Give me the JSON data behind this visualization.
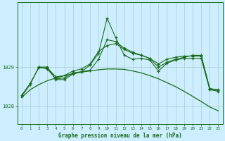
{
  "background_color": "#cceeff",
  "grid_color": "#aacccc",
  "line_color": "#1a6b1a",
  "title": "Graphe pression niveau de la mer (hPa)",
  "xlim": [
    -0.5,
    23.5
  ],
  "ylim": [
    1027.55,
    1030.65
  ],
  "yticks": [
    1028,
    1029
  ],
  "xticks": [
    0,
    1,
    2,
    3,
    4,
    5,
    6,
    7,
    8,
    9,
    10,
    11,
    12,
    13,
    14,
    15,
    16,
    17,
    18,
    19,
    20,
    21,
    22,
    23
  ],
  "series_main": {
    "x": [
      0,
      1,
      2,
      3,
      4,
      5,
      6,
      7,
      8,
      9,
      10,
      11,
      12,
      13,
      14,
      15,
      16,
      17,
      18,
      19,
      20,
      21,
      22,
      23
    ],
    "y": [
      1028.25,
      1028.55,
      1029.0,
      1028.95,
      1028.7,
      1028.72,
      1028.85,
      1028.88,
      1029.05,
      1029.35,
      1030.25,
      1029.75,
      1029.3,
      1029.2,
      1029.22,
      1029.18,
      1028.9,
      1029.1,
      1029.18,
      1029.22,
      1029.22,
      1029.22,
      1028.42,
      1028.38
    ]
  },
  "series2": {
    "x": [
      0,
      1,
      2,
      3,
      4,
      5,
      6,
      7,
      8,
      9,
      10,
      11,
      12,
      13,
      14,
      15,
      16,
      17,
      18,
      19,
      20,
      21,
      22,
      23
    ],
    "y": [
      1028.28,
      1028.58,
      1028.98,
      1028.98,
      1028.75,
      1028.78,
      1028.9,
      1028.95,
      1029.08,
      1029.4,
      1029.55,
      1029.6,
      1029.45,
      1029.35,
      1029.3,
      1029.22,
      1029.08,
      1029.2,
      1029.25,
      1029.28,
      1029.28,
      1029.28,
      1028.45,
      1028.4
    ]
  },
  "series3": {
    "x": [
      2,
      3,
      4,
      5,
      6,
      7,
      8,
      9,
      10,
      11,
      12,
      13,
      14,
      15,
      16,
      17,
      18,
      19,
      20,
      21,
      22,
      23
    ],
    "y": [
      1029.0,
      1029.0,
      1028.68,
      1028.68,
      1028.82,
      1028.88,
      1028.92,
      1029.2,
      1029.7,
      1029.65,
      1029.48,
      1029.38,
      1029.3,
      1029.22,
      1029.0,
      1029.12,
      1029.2,
      1029.25,
      1029.3,
      1029.3,
      1028.45,
      1028.42
    ]
  },
  "series_smooth": {
    "x": [
      0,
      1,
      2,
      3,
      4,
      5,
      6,
      7,
      8,
      9,
      10,
      11,
      12,
      13,
      14,
      15,
      16,
      17,
      18,
      19,
      20,
      21,
      22,
      23
    ],
    "y": [
      1028.22,
      1028.42,
      1028.55,
      1028.65,
      1028.72,
      1028.78,
      1028.83,
      1028.87,
      1028.9,
      1028.93,
      1028.95,
      1028.95,
      1028.94,
      1028.9,
      1028.85,
      1028.78,
      1028.7,
      1028.6,
      1028.5,
      1028.38,
      1028.25,
      1028.12,
      1027.98,
      1027.88
    ]
  }
}
